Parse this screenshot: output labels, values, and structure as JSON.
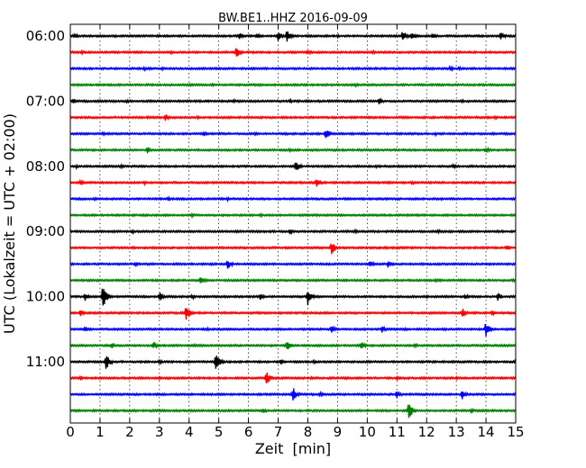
{
  "chart_data": {
    "type": "line",
    "title": "BW.BE1..HHZ 2016-09-09",
    "xlabel": "Zeit  [min]",
    "ylabel": "UTC (Lokalzeit = UTC + 02:00)",
    "xlim": [
      0,
      15
    ],
    "xticks": [
      "0",
      "1",
      "2",
      "3",
      "4",
      "5",
      "6",
      "7",
      "8",
      "9",
      "10",
      "11",
      "12",
      "13",
      "14",
      "15"
    ],
    "x_grid": "dotted",
    "y_tick_labels": [
      "06:00",
      "07:00",
      "08:00",
      "09:00",
      "10:00",
      "11:00"
    ],
    "row_interval_minutes": 15,
    "series_colors": [
      "#000000",
      "#ff0000",
      "#0000ff",
      "#008000"
    ],
    "rows": [
      {
        "start": "06:00",
        "events": [
          [
            0.15,
            3
          ],
          [
            1.5,
            2
          ],
          [
            5.7,
            4
          ],
          [
            6.3,
            3
          ],
          [
            7,
            6
          ],
          [
            7.3,
            7
          ],
          [
            9,
            2
          ],
          [
            11.2,
            7
          ],
          [
            11.5,
            5
          ],
          [
            12.2,
            4
          ],
          [
            14.5,
            5
          ]
        ]
      },
      {
        "start": "06:15",
        "events": [
          [
            0.4,
            2
          ],
          [
            3.4,
            2
          ],
          [
            5.6,
            7
          ],
          [
            8,
            3
          ],
          [
            10.2,
            2
          ]
        ]
      },
      {
        "start": "06:30",
        "events": [
          [
            2.5,
            2
          ],
          [
            3.1,
            2
          ],
          [
            12.8,
            3
          ],
          [
            13.1,
            2
          ]
        ]
      },
      {
        "start": "06:45",
        "events": [
          [
            4,
            2
          ],
          [
            4.8,
            2
          ],
          [
            9.6,
            2
          ]
        ]
      },
      {
        "start": "07:00",
        "events": [
          [
            0.1,
            3
          ],
          [
            1.9,
            2
          ],
          [
            5.5,
            2
          ],
          [
            7.4,
            2
          ],
          [
            10.4,
            4
          ],
          [
            13.2,
            2
          ]
        ]
      },
      {
        "start": "07:15",
        "events": [
          [
            2.6,
            2
          ],
          [
            3.2,
            4
          ],
          [
            4.3,
            2
          ],
          [
            14.3,
            2
          ]
        ]
      },
      {
        "start": "07:30",
        "events": [
          [
            1.1,
            2
          ],
          [
            4.5,
            3
          ],
          [
            5,
            2
          ],
          [
            6.2,
            2
          ],
          [
            8.6,
            7
          ],
          [
            12.3,
            2
          ]
        ]
      },
      {
        "start": "07:45",
        "events": [
          [
            2.6,
            4
          ],
          [
            7.4,
            2
          ],
          [
            14,
            3
          ]
        ]
      },
      {
        "start": "08:00",
        "events": [
          [
            0.2,
            2
          ],
          [
            1.7,
            2
          ],
          [
            7.6,
            7
          ],
          [
            10.3,
            2
          ],
          [
            12.9,
            3
          ]
        ]
      },
      {
        "start": "08:15",
        "events": [
          [
            0.35,
            3
          ],
          [
            2.5,
            2
          ],
          [
            8.3,
            5
          ],
          [
            11.5,
            2
          ]
        ]
      },
      {
        "start": "08:30",
        "events": [
          [
            0.8,
            2
          ],
          [
            3.3,
            2
          ],
          [
            5.3,
            2
          ],
          [
            12.5,
            2
          ]
        ]
      },
      {
        "start": "08:45",
        "events": [
          [
            4.1,
            2
          ],
          [
            6.4,
            2
          ]
        ]
      },
      {
        "start": "09:00",
        "events": [
          [
            2.1,
            2
          ],
          [
            7.4,
            3
          ],
          [
            9.6,
            2
          ],
          [
            12.4,
            2
          ]
        ]
      },
      {
        "start": "09:15",
        "events": [
          [
            8.8,
            8
          ],
          [
            11,
            2
          ],
          [
            14.7,
            3
          ]
        ]
      },
      {
        "start": "09:30",
        "events": [
          [
            2.2,
            3
          ],
          [
            5.3,
            6
          ],
          [
            10.1,
            4
          ],
          [
            10.7,
            4
          ]
        ]
      },
      {
        "start": "09:45",
        "events": [
          [
            4.4,
            6
          ],
          [
            12.3,
            2
          ],
          [
            14.9,
            2
          ]
        ]
      },
      {
        "start": "10:00",
        "events": [
          [
            0.5,
            5
          ],
          [
            1.1,
            14
          ],
          [
            3,
            6
          ],
          [
            4.1,
            3
          ],
          [
            6.4,
            4
          ],
          [
            8,
            10
          ],
          [
            12,
            2
          ],
          [
            13.3,
            3
          ],
          [
            14.4,
            5
          ]
        ]
      },
      {
        "start": "10:15",
        "events": [
          [
            0.35,
            5
          ],
          [
            3.9,
            9
          ],
          [
            13.2,
            6
          ],
          [
            14.2,
            3
          ]
        ]
      },
      {
        "start": "10:30",
        "events": [
          [
            0.5,
            3
          ],
          [
            4.6,
            2
          ],
          [
            8.8,
            5
          ],
          [
            10.5,
            4
          ],
          [
            11.3,
            2
          ],
          [
            12.6,
            2
          ],
          [
            14,
            9
          ]
        ]
      },
      {
        "start": "10:45",
        "events": [
          [
            1.4,
            3
          ],
          [
            2.8,
            5
          ],
          [
            4.2,
            2
          ],
          [
            7.3,
            6
          ],
          [
            9.8,
            5
          ],
          [
            11.6,
            3
          ]
        ]
      },
      {
        "start": "11:00",
        "events": [
          [
            1.2,
            10
          ],
          [
            3,
            3
          ],
          [
            4.9,
            11
          ],
          [
            7.1,
            3
          ],
          [
            8.2,
            2
          ],
          [
            15,
            3
          ]
        ]
      },
      {
        "start": "11:15",
        "events": [
          [
            0.35,
            3
          ],
          [
            3,
            2
          ],
          [
            6.6,
            9
          ],
          [
            8.1,
            2
          ],
          [
            11,
            2
          ],
          [
            13,
            2
          ]
        ]
      },
      {
        "start": "11:30",
        "events": [
          [
            7.5,
            9
          ],
          [
            8.4,
            3
          ],
          [
            11,
            5
          ],
          [
            13.2,
            6
          ]
        ]
      },
      {
        "start": "11:45",
        "events": [
          [
            6.5,
            3
          ],
          [
            11.4,
            11
          ],
          [
            13.5,
            3
          ]
        ]
      }
    ]
  }
}
